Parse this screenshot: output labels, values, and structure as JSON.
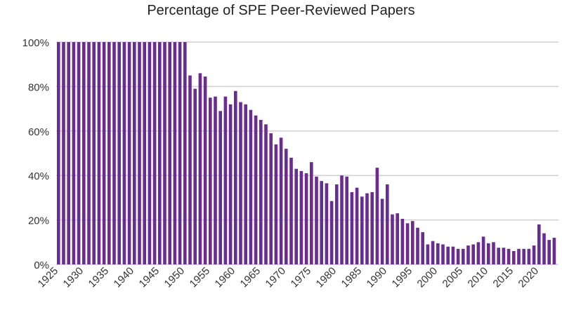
{
  "chart_data": {
    "type": "bar",
    "title": "Percentage of SPE Peer-Reviewed Papers",
    "xlabel": "",
    "ylabel": "",
    "ylim": [
      0,
      100
    ],
    "y_ticks": [
      "0%",
      "20%",
      "40%",
      "60%",
      "80%",
      "100%"
    ],
    "x_tick_labels": [
      "1925",
      "1930",
      "1935",
      "1940",
      "1945",
      "1950",
      "1955",
      "1960",
      "1965",
      "1970",
      "1975",
      "1980",
      "1985",
      "1990",
      "1995",
      "2000",
      "2005",
      "2010",
      "2015",
      "2020"
    ],
    "grid": true,
    "bar_color": "#6a2c91",
    "start_year": 1925,
    "values": [
      100,
      100,
      100,
      100,
      100,
      100,
      100,
      100,
      100,
      100,
      100,
      100,
      100,
      100,
      100,
      100,
      100,
      100,
      100,
      100,
      100,
      100,
      100,
      100,
      100,
      100,
      85,
      79,
      86,
      84.5,
      75,
      75.5,
      69,
      75.5,
      72,
      78,
      73,
      72,
      69.5,
      67,
      65,
      63,
      59,
      54,
      57,
      52,
      48,
      43,
      42,
      41,
      46,
      39.5,
      37.5,
      36.5,
      28.5,
      36,
      40,
      39.5,
      32.5,
      34.5,
      30.5,
      32,
      32.5,
      43.5,
      29.5,
      36,
      22.5,
      23,
      20.5,
      18.5,
      19.5,
      16.5,
      14.5,
      9,
      10.5,
      9.5,
      9,
      8,
      8,
      7,
      7,
      8.5,
      9,
      10,
      12.5,
      9.5,
      10,
      7.5,
      7.5,
      7,
      6,
      7,
      7,
      7,
      8.5,
      18,
      14,
      11,
      12
    ]
  }
}
